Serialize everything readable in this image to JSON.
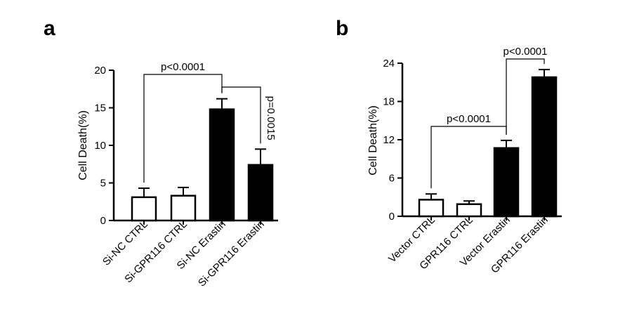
{
  "chart_data": [
    {
      "panel": "a",
      "type": "bar",
      "ylabel": "Cell Death(%)",
      "ylim": [
        0,
        20
      ],
      "yticks": [
        0,
        5,
        10,
        15,
        20
      ],
      "categories": [
        "Si-NC CTRL",
        "Si-GPR116 CTRL",
        "Si-NC Erastin",
        "Si-GPR116 Erastin"
      ],
      "values": [
        3.1,
        3.3,
        14.8,
        7.4
      ],
      "errors": [
        1.2,
        1.1,
        1.4,
        2.1
      ],
      "fill": [
        "#ffffff",
        "#ffffff",
        "#000000",
        "#000000"
      ],
      "annotations": [
        {
          "from": 0,
          "to": 2,
          "text": "p<0.0001",
          "orientation": "horizontal"
        },
        {
          "from": 2,
          "to": 3,
          "text": "p=0.0015",
          "orientation": "vertical"
        }
      ]
    },
    {
      "panel": "b",
      "type": "bar",
      "ylabel": "Cell Death(%)",
      "ylim": [
        0,
        24
      ],
      "yticks": [
        0,
        6,
        12,
        18,
        24
      ],
      "categories": [
        "Vector CTRL",
        "GPR116 CTRL",
        "Vector Erastin",
        "GPR116 Erastin"
      ],
      "values": [
        2.6,
        1.9,
        10.7,
        21.8
      ],
      "errors": [
        0.9,
        0.5,
        1.2,
        1.2
      ],
      "fill": [
        "#ffffff",
        "#ffffff",
        "#000000",
        "#000000"
      ],
      "annotations": [
        {
          "from": 0,
          "to": 2,
          "text": "p<0.0001",
          "orientation": "horizontal"
        },
        {
          "from": 2,
          "to": 3,
          "text": "p<0.0001",
          "orientation": "horizontal"
        }
      ]
    }
  ]
}
